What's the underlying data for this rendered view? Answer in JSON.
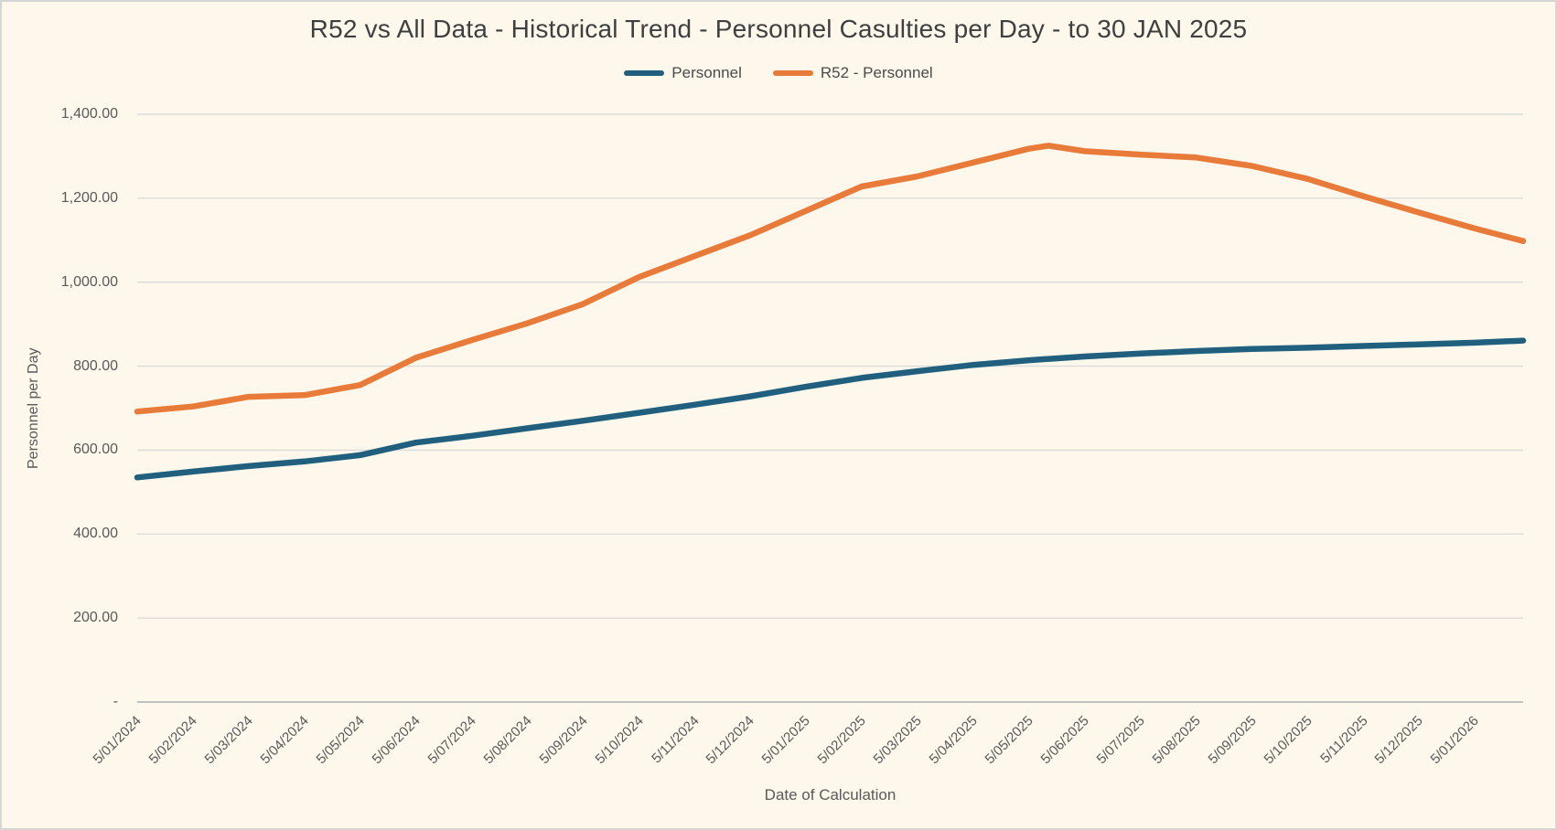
{
  "window": {
    "title": "R52 vs All Data - Historical Trend - Personnel Casulties per Day - to 30 JAN 2025"
  },
  "chart_data": {
    "type": "line",
    "title": "R52 vs All Data - Historical Trend - Personnel Casulties per Day - to 30 JAN 2025",
    "xlabel": "Date of Calculation",
    "ylabel": "Personnel per Day",
    "ylim": [
      0,
      1400
    ],
    "x_range": [
      0,
      24.87
    ],
    "grid": true,
    "legend_position": "top-center",
    "colors": {
      "background": "#FDF8EB",
      "border": "#D5D5D5",
      "gridline": "#DBDBDB",
      "axis_line": "#BFBFBF",
      "text": "#595959",
      "title_text": "#3F3F3F"
    },
    "y_ticks": [
      {
        "value": 0,
        "label": "-"
      },
      {
        "value": 200,
        "label": "200.00"
      },
      {
        "value": 400,
        "label": "400.00"
      },
      {
        "value": 600,
        "label": "600.00"
      },
      {
        "value": 800,
        "label": "800.00"
      },
      {
        "value": 1000,
        "label": "1,000.00"
      },
      {
        "value": 1200,
        "label": "1,200.00"
      },
      {
        "value": 1400,
        "label": "1,400.00"
      }
    ],
    "x_ticks": [
      {
        "pos": 0,
        "label": "5/01/2024"
      },
      {
        "pos": 1,
        "label": "5/02/2024"
      },
      {
        "pos": 2,
        "label": "5/03/2024"
      },
      {
        "pos": 3,
        "label": "5/04/2024"
      },
      {
        "pos": 4,
        "label": "5/05/2024"
      },
      {
        "pos": 5,
        "label": "5/06/2024"
      },
      {
        "pos": 6,
        "label": "5/07/2024"
      },
      {
        "pos": 7,
        "label": "5/08/2024"
      },
      {
        "pos": 8,
        "label": "5/09/2024"
      },
      {
        "pos": 9,
        "label": "5/10/2024"
      },
      {
        "pos": 10,
        "label": "5/11/2024"
      },
      {
        "pos": 11,
        "label": "5/12/2024"
      },
      {
        "pos": 12,
        "label": "5/01/2025"
      },
      {
        "pos": 13,
        "label": "5/02/2025"
      },
      {
        "pos": 14,
        "label": "5/03/2025"
      },
      {
        "pos": 15,
        "label": "5/04/2025"
      },
      {
        "pos": 16,
        "label": "5/05/2025"
      },
      {
        "pos": 17,
        "label": "5/06/2025"
      },
      {
        "pos": 18,
        "label": "5/07/2025"
      },
      {
        "pos": 19,
        "label": "5/08/2025"
      },
      {
        "pos": 20,
        "label": "5/09/2025"
      },
      {
        "pos": 21,
        "label": "5/10/2025"
      },
      {
        "pos": 22,
        "label": "5/11/2025"
      },
      {
        "pos": 23,
        "label": "5/12/2025"
      },
      {
        "pos": 24,
        "label": "5/01/2026"
      }
    ],
    "series": [
      {
        "name": "Personnel",
        "color": "#20607E",
        "x": [
          0,
          1,
          2,
          3,
          4,
          5,
          6,
          7,
          8,
          9,
          10,
          11,
          12,
          13,
          14,
          15,
          16,
          17,
          18,
          19,
          20,
          21,
          22,
          23,
          24,
          24.87
        ],
        "values": [
          535,
          549,
          562,
          573,
          588,
          618,
          634,
          652,
          670,
          689,
          708,
          728,
          751,
          772,
          788,
          803,
          814,
          823,
          830,
          836,
          841,
          844,
          848,
          852,
          856,
          861
        ]
      },
      {
        "name": "R52 - Personnel",
        "color": "#E87A3A",
        "x": [
          0,
          1,
          2,
          3,
          4,
          5,
          6,
          7,
          8,
          9,
          10,
          11,
          12,
          13,
          14,
          15,
          16,
          16.35,
          17,
          18,
          19,
          20,
          21,
          22,
          23,
          24,
          24.87
        ],
        "values": [
          692,
          704,
          727,
          731,
          755,
          820,
          862,
          902,
          948,
          1012,
          1062,
          1112,
          1170,
          1228,
          1252,
          1285,
          1318,
          1325,
          1312,
          1304,
          1297,
          1277,
          1246,
          1205,
          1166,
          1128,
          1098
        ]
      }
    ]
  }
}
